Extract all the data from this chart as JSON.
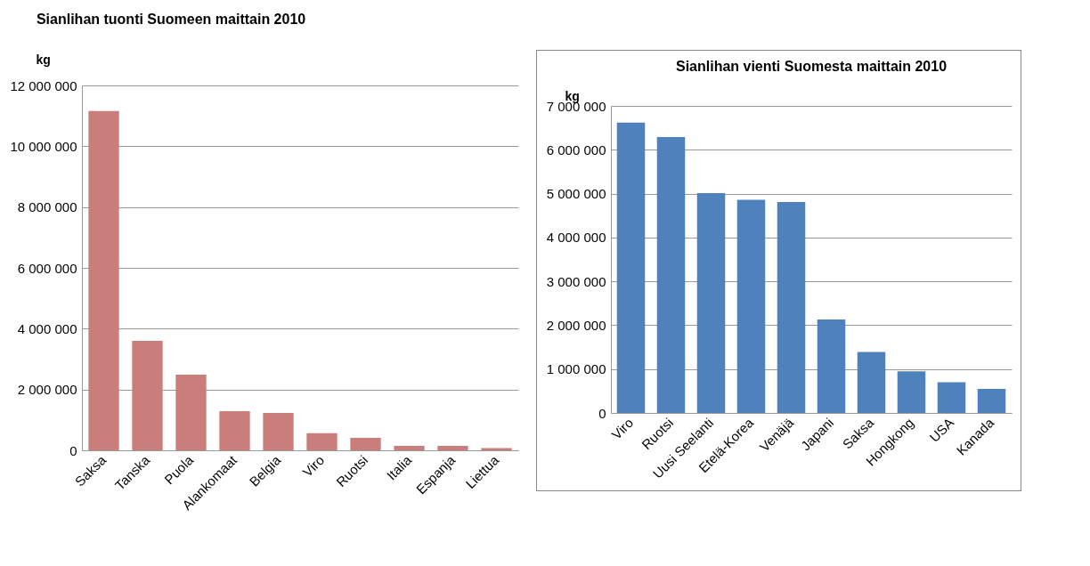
{
  "chart_data": [
    {
      "type": "bar",
      "title": "Sianlihan tuonti Suomeen maittain 2010",
      "ylabel": "kg",
      "categories": [
        "Saksa",
        "Tanska",
        "Puola",
        "Alankomaat",
        "Belgia",
        "Viro",
        "Ruotsi",
        "Italia",
        "Espanja",
        "Liettua"
      ],
      "values": [
        11160000,
        3600000,
        2490000,
        1290000,
        1230000,
        560000,
        410000,
        150000,
        150000,
        70000
      ],
      "color": "#c97e7b",
      "ylim": [
        0,
        12000000
      ],
      "yticks": [
        0,
        2000000,
        4000000,
        6000000,
        8000000,
        10000000,
        12000000
      ],
      "grid": "y"
    },
    {
      "type": "bar",
      "title": "Sianlihan vienti Suomesta maittain 2010",
      "ylabel": "kg",
      "categories": [
        "Viro",
        "Ruotsi",
        "Uusi Seelanti",
        "Etelä-Korea",
        "Venäjä",
        "Japani",
        "Saksa",
        "Hongkong",
        "USA",
        "Kanada"
      ],
      "values": [
        6620000,
        6290000,
        5010000,
        4860000,
        4810000,
        2130000,
        1390000,
        950000,
        700000,
        550000
      ],
      "color": "#4f81bd",
      "ylim": [
        0,
        7000000
      ],
      "yticks": [
        0,
        1000000,
        2000000,
        3000000,
        4000000,
        5000000,
        6000000,
        7000000
      ],
      "grid": "y"
    }
  ]
}
